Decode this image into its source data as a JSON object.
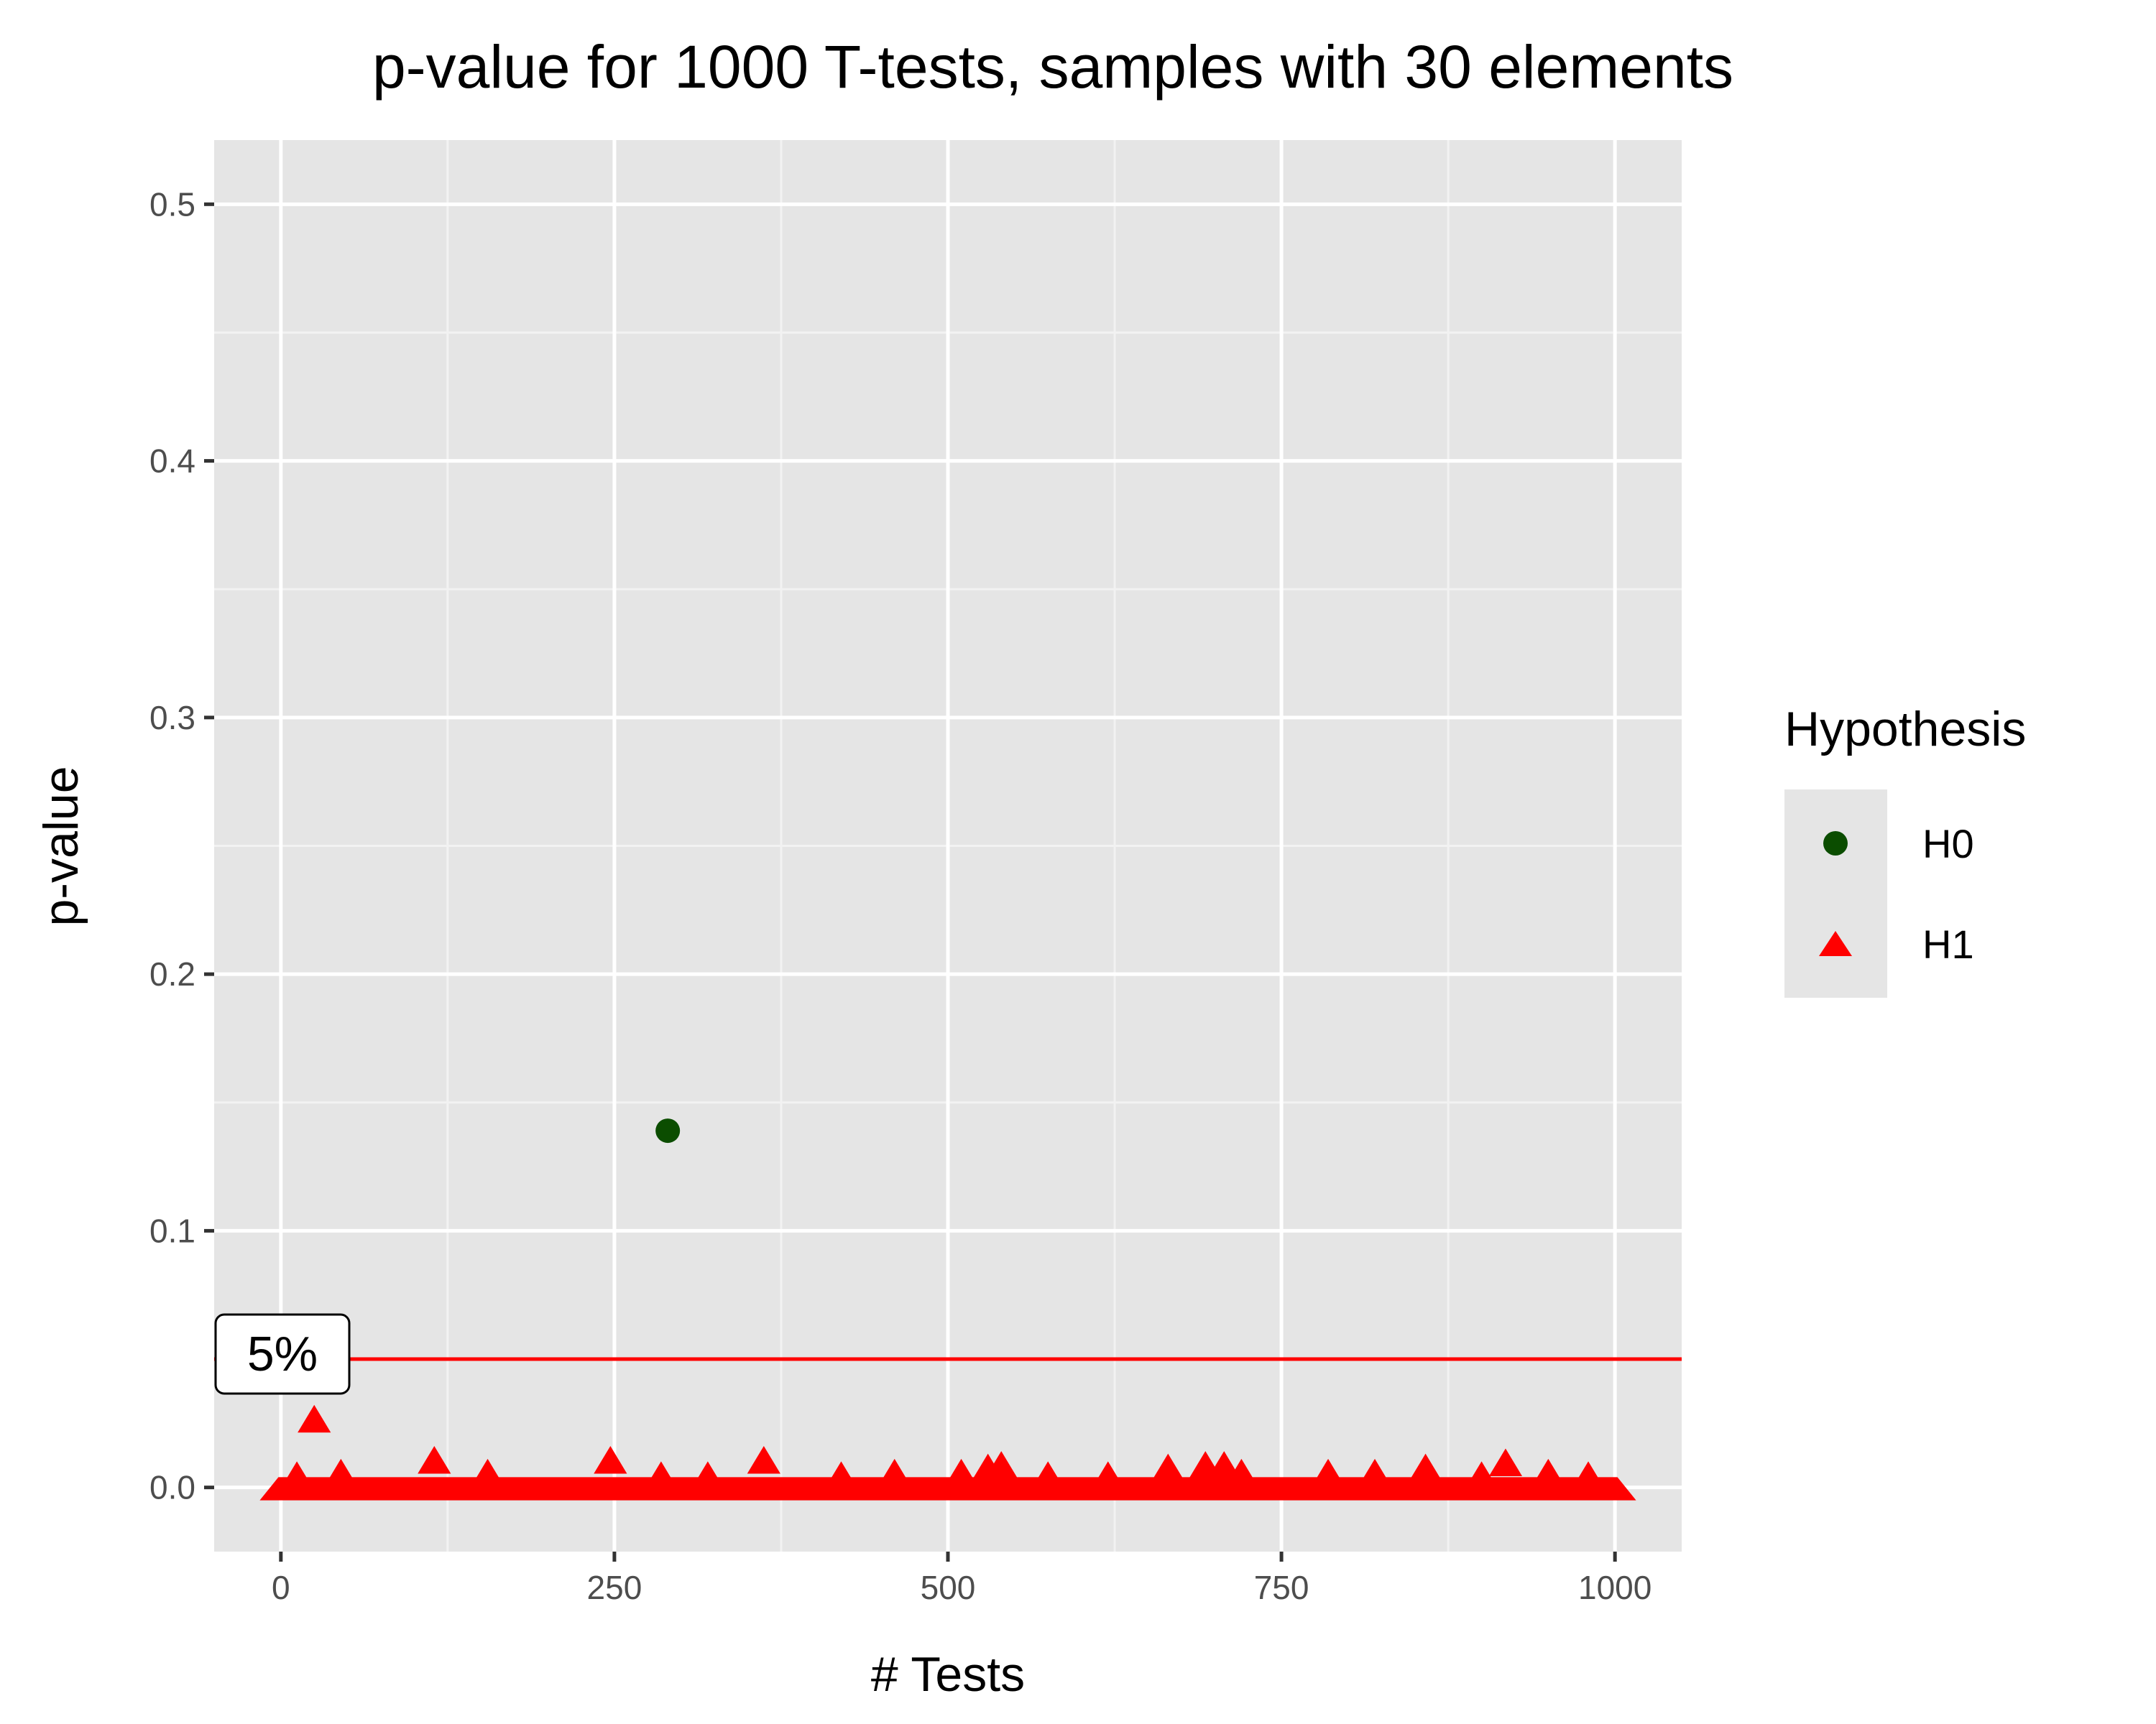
{
  "chart_data": {
    "type": "scatter",
    "title": "p-value for 1000 T-tests, samples with 30 elements",
    "xlabel": "# Tests",
    "ylabel": "p-value",
    "xlim": [
      -50,
      1050
    ],
    "ylim": [
      -0.025,
      0.525
    ],
    "x_ticks": [
      0,
      250,
      500,
      750,
      1000
    ],
    "x_tick_labels": [
      "0",
      "250",
      "500",
      "750",
      "1000"
    ],
    "y_ticks": [
      0.0,
      0.1,
      0.2,
      0.3,
      0.4,
      0.5
    ],
    "y_tick_labels": [
      "0.0",
      "0.1",
      "0.2",
      "0.3",
      "0.4",
      "0.5"
    ],
    "grid": true,
    "legend": {
      "title": "Hypothesis",
      "position": "right",
      "entries": [
        {
          "label": "H0",
          "shape": "circle",
          "color": "#0b4d00"
        },
        {
          "label": "H1",
          "shape": "triangle",
          "color": "#ff0000"
        }
      ]
    },
    "threshold": {
      "y": 0.05,
      "label": "5%",
      "color": "#ff0000"
    },
    "series": [
      {
        "name": "H0",
        "shape": "circle",
        "color": "#0b4d00",
        "points": [
          [
            290,
            0.139
          ]
        ]
      },
      {
        "name": "H1",
        "shape": "triangle",
        "color": "#ff0000",
        "points": [
          [
            25,
            0.026
          ],
          [
            115,
            0.01
          ],
          [
            247,
            0.01
          ],
          [
            362,
            0.01
          ],
          [
            540,
            0.008
          ],
          [
            530,
            0.007
          ],
          [
            665,
            0.007
          ],
          [
            693,
            0.008
          ],
          [
            707,
            0.008
          ],
          [
            858,
            0.007
          ],
          [
            918,
            0.009
          ],
          [
            12,
            0.004
          ],
          [
            45,
            0.005
          ],
          [
            155,
            0.005
          ],
          [
            285,
            0.004
          ],
          [
            320,
            0.004
          ],
          [
            420,
            0.004
          ],
          [
            460,
            0.005
          ],
          [
            510,
            0.005
          ],
          [
            575,
            0.004
          ],
          [
            620,
            0.004
          ],
          [
            720,
            0.005
          ],
          [
            785,
            0.005
          ],
          [
            820,
            0.005
          ],
          [
            900,
            0.004
          ],
          [
            950,
            0.005
          ],
          [
            980,
            0.004
          ]
        ]
      }
    ]
  }
}
